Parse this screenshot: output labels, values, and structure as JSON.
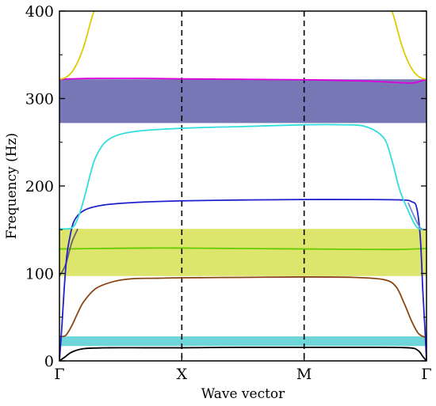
{
  "chart_data": {
    "type": "line",
    "title": "",
    "xlabel": "Wave vector",
    "ylabel": "Frequency (Hz)",
    "x_ticks": [
      "Γ",
      "X",
      "M",
      "Γ"
    ],
    "x_tick_positions": [
      0,
      1,
      2,
      3
    ],
    "xlim": [
      0,
      3
    ],
    "y_ticks": [
      "0",
      "100",
      "200",
      "300",
      "400"
    ],
    "y_tick_values": [
      0,
      100,
      200,
      300,
      400
    ],
    "ylim": [
      0,
      400
    ],
    "grid": false,
    "vertical_lines": [
      {
        "x": 1,
        "style": "dashed",
        "color": "#000000"
      },
      {
        "x": 2,
        "style": "dashed",
        "color": "#000000"
      }
    ],
    "band_gaps": [
      {
        "y_range": [
          17,
          28
        ],
        "color": "#3dc8cc"
      },
      {
        "y_range": [
          97,
          151
        ],
        "color": "#d2dc3c"
      },
      {
        "y_range": [
          272,
          322
        ],
        "color": "#4a4a9e"
      }
    ],
    "series": [
      {
        "color": "#000000",
        "x": [
          0,
          0.05,
          0.1,
          0.2,
          0.4,
          0.7,
          1.0,
          1.5,
          2.0,
          2.5,
          2.85,
          2.93,
          2.97,
          3.0
        ],
        "y": [
          0,
          5,
          10,
          14,
          15,
          15,
          15,
          15.5,
          15.5,
          15.5,
          15,
          12,
          5,
          0
        ]
      },
      {
        "color": "#8b4513",
        "x": [
          0,
          0.05,
          0.1,
          0.15,
          0.2,
          0.3,
          0.45,
          0.6,
          0.8,
          1.0,
          1.5,
          2.0,
          2.4,
          2.65,
          2.75,
          2.82,
          2.88,
          2.93,
          2.97,
          3.0
        ],
        "y": [
          28,
          29,
          40,
          55,
          68,
          83,
          91,
          94,
          94.5,
          95,
          95.5,
          96,
          95.5,
          93,
          85,
          65,
          45,
          32,
          28,
          27
        ]
      },
      {
        "color": "#66cc00",
        "x": [
          0,
          0.3,
          0.7,
          1.0,
          1.5,
          2.0,
          2.5,
          2.8,
          3.0
        ],
        "y": [
          128,
          128.5,
          129,
          129,
          128.5,
          128,
          127.5,
          127.5,
          128.5
        ]
      },
      {
        "color": "#666666",
        "x": [
          0,
          0.05,
          0.1,
          0.15
        ],
        "y": [
          97,
          110,
          135,
          151
        ]
      },
      {
        "color": "#2020cc",
        "x": [
          0,
          0.02,
          0.04,
          0.06,
          0.08,
          0.12,
          0.2,
          0.35,
          0.6,
          1.0,
          1.5,
          2.0,
          2.5,
          2.8,
          2.88,
          2.92,
          2.95,
          2.97,
          2.99,
          3.0
        ],
        "y": [
          0,
          40,
          85,
          120,
          138,
          160,
          172,
          178,
          181,
          183,
          184,
          184.5,
          184.5,
          184,
          182,
          175,
          140,
          80,
          30,
          0
        ]
      },
      {
        "color": "#33dddd",
        "x": [
          0,
          0.1,
          0.15,
          0.2,
          0.25,
          0.3,
          0.4,
          0.6,
          1.0,
          1.5,
          2.0,
          2.3,
          2.5,
          2.65,
          2.72,
          2.78,
          2.85,
          2.92,
          3.0
        ],
        "y": [
          151,
          152,
          163,
          185,
          212,
          234,
          253,
          262,
          266,
          268,
          270,
          270,
          268,
          255,
          228,
          196,
          172,
          153,
          150
        ]
      },
      {
        "color": "#6a8fcf",
        "x": [
          2.85,
          2.9,
          2.95,
          3.0
        ],
        "y": [
          181,
          165,
          152,
          150
        ]
      },
      {
        "color": "#dd00dd",
        "x": [
          0,
          0.1,
          0.3,
          0.7,
          1.0,
          1.5,
          2.0,
          2.5,
          2.8,
          2.9,
          3.0
        ],
        "y": [
          322,
          322.5,
          323,
          323,
          322.5,
          322,
          321.5,
          320,
          318,
          318,
          322
        ]
      },
      {
        "color": "#ddcc00",
        "x": [
          0,
          0.05,
          0.1,
          0.15,
          0.2,
          0.24,
          0.27,
          0.285
        ],
        "y": [
          322,
          324,
          330,
          342,
          360,
          380,
          395,
          400
        ]
      },
      {
        "color": "#ddcc00",
        "x": [
          2.715,
          2.73,
          2.76,
          2.8,
          2.85,
          2.9,
          2.95,
          3.0
        ],
        "y": [
          400,
          395,
          380,
          360,
          342,
          330,
          324,
          322
        ]
      }
    ]
  }
}
